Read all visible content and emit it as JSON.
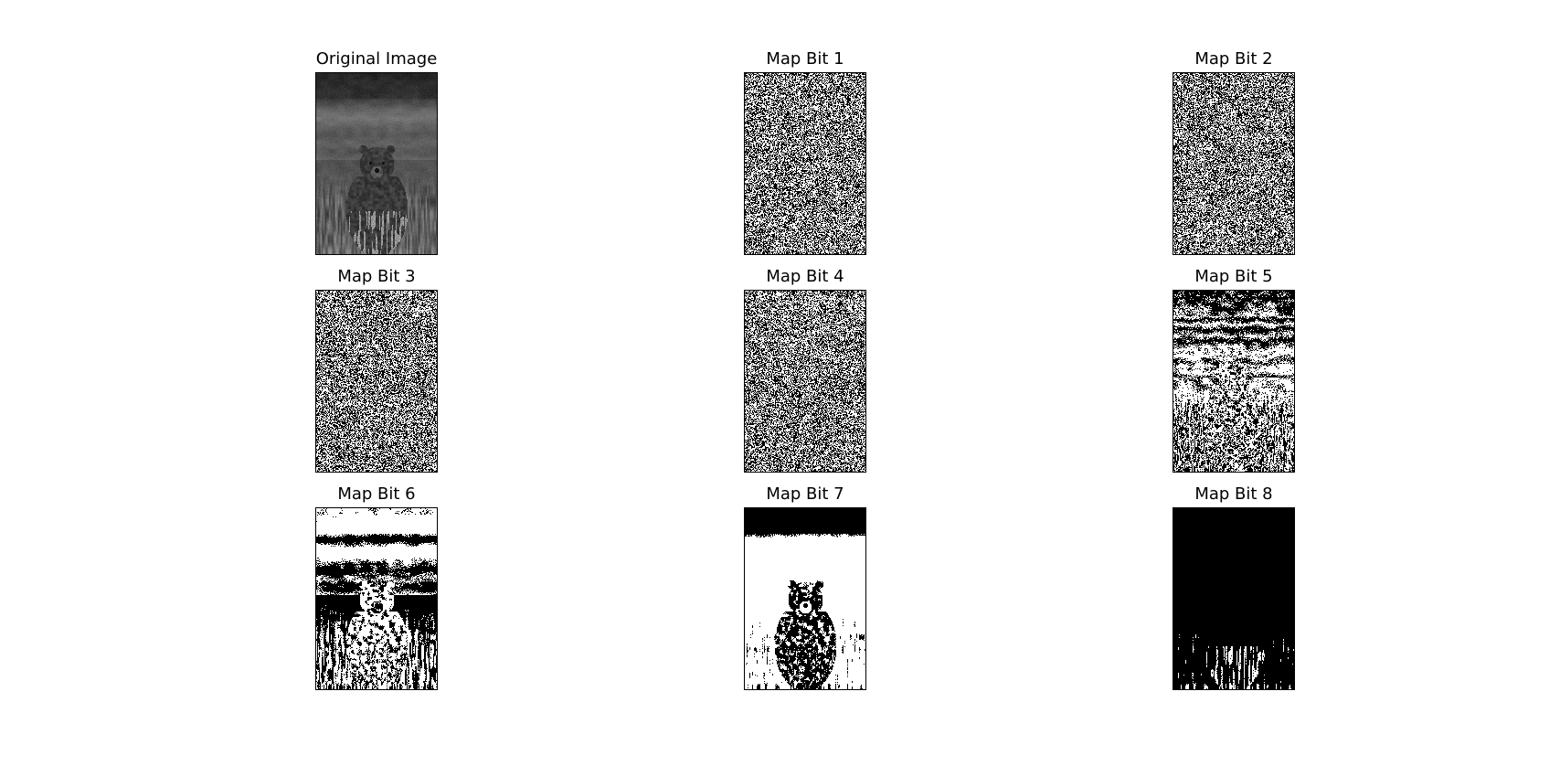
{
  "figure": {
    "panels": [
      {
        "id": "original",
        "title": "Original Image",
        "kind": "grayscale"
      },
      {
        "id": "bit1",
        "title": "Map Bit 1",
        "kind": "bitplane",
        "bit": 1
      },
      {
        "id": "bit2",
        "title": "Map Bit 2",
        "kind": "bitplane",
        "bit": 2
      },
      {
        "id": "bit3",
        "title": "Map Bit 3",
        "kind": "bitplane",
        "bit": 3
      },
      {
        "id": "bit4",
        "title": "Map Bit 4",
        "kind": "bitplane",
        "bit": 4
      },
      {
        "id": "bit5",
        "title": "Map Bit 5",
        "kind": "bitplane",
        "bit": 5
      },
      {
        "id": "bit6",
        "title": "Map Bit 6",
        "kind": "bitplane",
        "bit": 6
      },
      {
        "id": "bit7",
        "title": "Map Bit 7",
        "kind": "bitplane",
        "bit": 7
      },
      {
        "id": "bit8",
        "title": "Map Bit 8",
        "kind": "bitplane",
        "bit": 8
      }
    ],
    "colors": {
      "background": "#ffffff",
      "frame": "#000000",
      "on": "#ffffff",
      "off": "#000000"
    },
    "scene": "grayscale photo of a brown bear sitting in tall grass, blurred background"
  }
}
